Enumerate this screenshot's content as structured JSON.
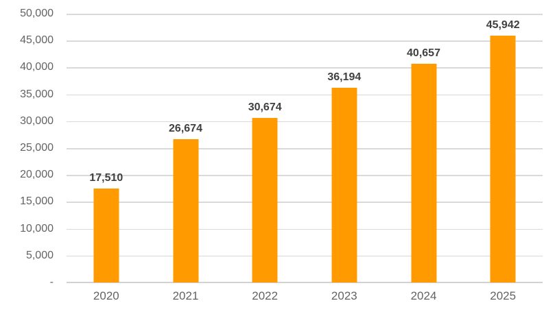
{
  "chart_data": {
    "type": "bar",
    "title": "",
    "xlabel": "",
    "ylabel": "",
    "categories": [
      "2020",
      "2021",
      "2022",
      "2023",
      "2024",
      "2025"
    ],
    "values": [
      17510,
      26674,
      30674,
      36194,
      40657,
      45942
    ],
    "data_labels": [
      "17,510",
      "26,674",
      "30,674",
      "36,194",
      "40,657",
      "45,942"
    ],
    "ylim": [
      0,
      50000
    ],
    "y_tick_step": 5000,
    "y_tick_labels": [
      "-",
      "5,000",
      "10,000",
      "15,000",
      "20,000",
      "25,000",
      "30,000",
      "35,000",
      "40,000",
      "45,000",
      "50,000"
    ],
    "grid": true,
    "legend": false,
    "colors": {
      "bar": "#FF9A00",
      "gridline": "#D9D9D9",
      "axis_line": "#D2D2D2",
      "tick_label": "#636363",
      "data_label": "#404040",
      "background": "#FFFFFF"
    }
  }
}
